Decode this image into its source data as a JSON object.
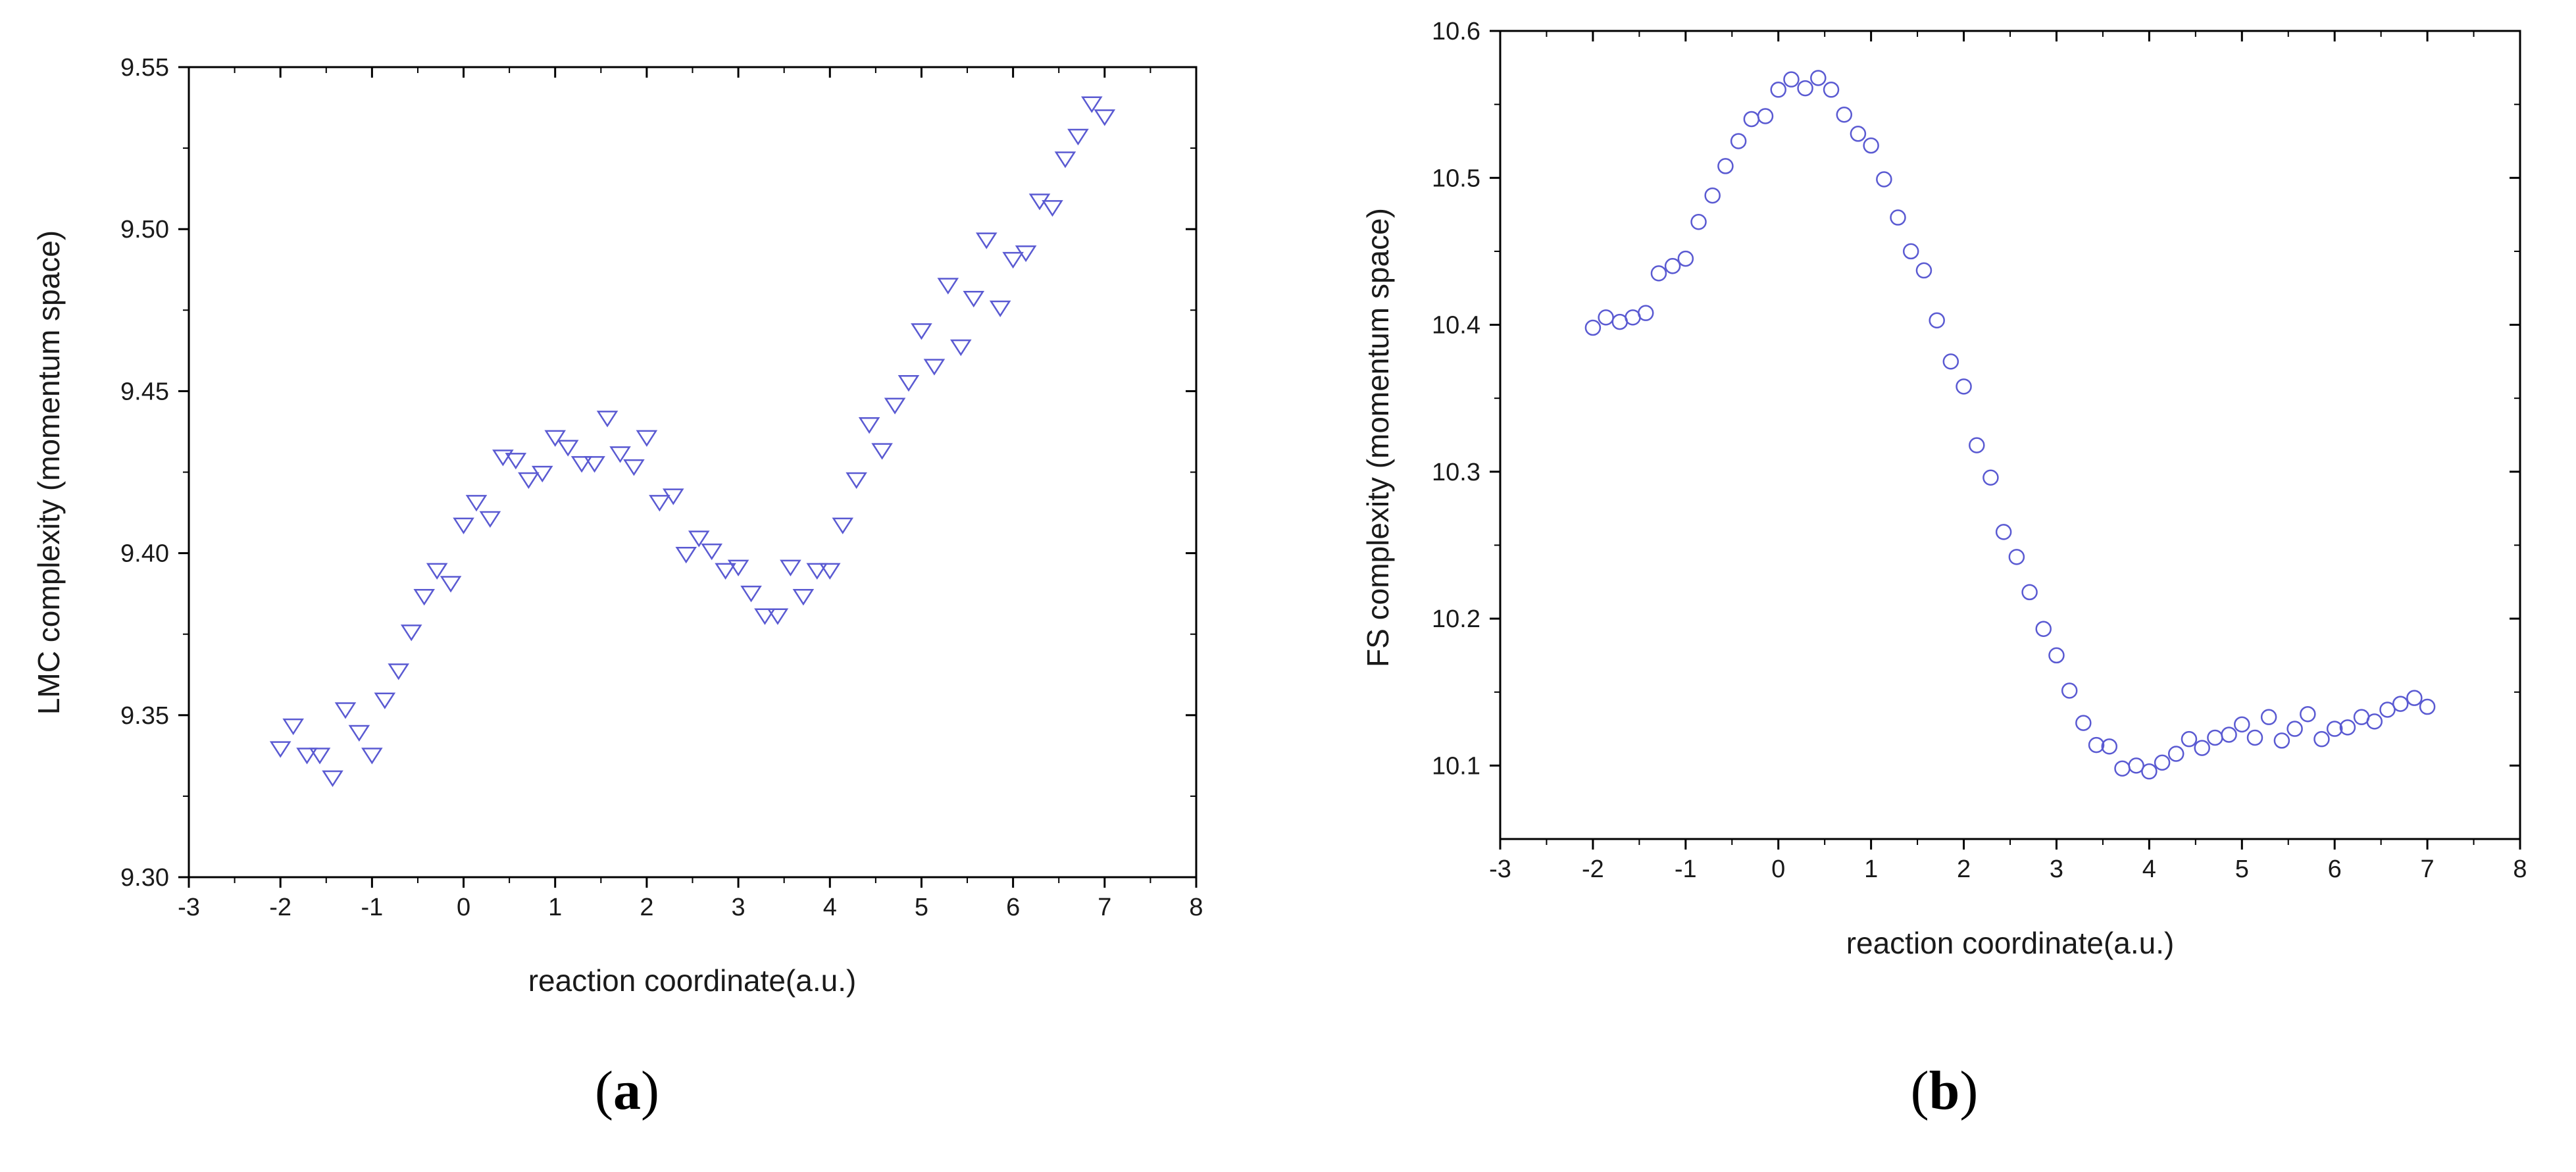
{
  "chart_data": [
    {
      "type": "scatter",
      "panel_label": "a",
      "xlabel": "reaction coordinate(a.u.)",
      "ylabel": "LMC complexity (momentum space)",
      "xlim": [
        -3,
        8
      ],
      "ylim": [
        9.3,
        9.55
      ],
      "xticks": [
        -3,
        -2,
        -1,
        0,
        1,
        2,
        3,
        4,
        5,
        6,
        7,
        8
      ],
      "xtick_labels": [
        "-3",
        "-2",
        "-1",
        "0",
        "1",
        "2",
        "3",
        "4",
        "5",
        "6",
        "7",
        "8"
      ],
      "yticks": [
        9.3,
        9.35,
        9.4,
        9.45,
        9.5,
        9.55
      ],
      "ytick_labels": [
        "9.30",
        "9.35",
        "9.40",
        "9.45",
        "9.50",
        "9.55"
      ],
      "marker": "triangle-down",
      "color": "#5a5ad2",
      "grid": false,
      "series": [
        {
          "x": [
            -2.0,
            -1.86,
            -1.71,
            -1.57,
            -1.43,
            -1.29,
            -1.14,
            -1.0,
            -0.86,
            -0.71,
            -0.57,
            -0.43,
            -0.29,
            -0.14,
            0.0,
            0.14,
            0.29,
            0.43,
            0.57,
            0.71,
            0.86,
            1.0,
            1.14,
            1.29,
            1.43,
            1.57,
            1.71,
            1.86,
            2.0,
            2.14,
            2.29,
            2.43,
            2.57,
            2.71,
            2.86,
            3.0,
            3.14,
            3.29,
            3.43,
            3.57,
            3.71,
            3.86,
            4.0,
            4.14,
            4.29,
            4.43,
            4.57,
            4.71,
            4.86,
            5.0,
            5.14,
            5.29,
            5.43,
            5.57,
            5.71,
            5.86,
            6.0,
            6.14,
            6.29,
            6.43,
            6.57,
            6.71,
            6.86,
            7.0
          ],
          "y": [
            9.34,
            9.347,
            9.338,
            9.338,
            9.331,
            9.352,
            9.345,
            9.338,
            9.355,
            9.364,
            9.376,
            9.387,
            9.395,
            9.391,
            9.409,
            9.416,
            9.411,
            9.43,
            9.429,
            9.423,
            9.425,
            9.436,
            9.433,
            9.428,
            9.428,
            9.442,
            9.431,
            9.427,
            9.436,
            9.416,
            9.418,
            9.4,
            9.405,
            9.401,
            9.395,
            9.396,
            9.388,
            9.381,
            9.381,
            9.396,
            9.387,
            9.395,
            9.395,
            9.409,
            9.423,
            9.44,
            9.432,
            9.446,
            9.453,
            9.469,
            9.458,
            9.483,
            9.464,
            9.479,
            9.497,
            9.476,
            9.491,
            9.493,
            9.509,
            9.507,
            9.522,
            9.529,
            9.539,
            9.535
          ]
        }
      ]
    },
    {
      "type": "scatter",
      "panel_label": "b",
      "xlabel": "reaction coordinate(a.u.)",
      "ylabel": "FS complexity (momentum space)",
      "xlim": [
        -3,
        8
      ],
      "ylim": [
        10.05,
        10.6
      ],
      "xticks": [
        -3,
        -2,
        -1,
        0,
        1,
        2,
        3,
        4,
        5,
        6,
        7,
        8
      ],
      "xtick_labels": [
        "-3",
        "-2",
        "-1",
        "0",
        "1",
        "2",
        "3",
        "4",
        "5",
        "6",
        "7",
        "8"
      ],
      "yticks": [
        10.1,
        10.2,
        10.3,
        10.4,
        10.5,
        10.6
      ],
      "ytick_labels": [
        "10.1",
        "10.2",
        "10.3",
        "10.4",
        "10.5",
        "10.6"
      ],
      "marker": "circle",
      "color": "#5a5ad2",
      "grid": false,
      "series": [
        {
          "x": [
            -2.0,
            -1.86,
            -1.71,
            -1.57,
            -1.43,
            -1.29,
            -1.14,
            -1.0,
            -0.86,
            -0.71,
            -0.57,
            -0.43,
            -0.29,
            -0.14,
            0.0,
            0.14,
            0.29,
            0.43,
            0.57,
            0.71,
            0.86,
            1.0,
            1.14,
            1.29,
            1.43,
            1.57,
            1.71,
            1.86,
            2.0,
            2.14,
            2.29,
            2.43,
            2.57,
            2.71,
            2.86,
            3.0,
            3.14,
            3.29,
            3.43,
            3.57,
            3.71,
            3.86,
            4.0,
            4.14,
            4.29,
            4.43,
            4.57,
            4.71,
            4.86,
            5.0,
            5.14,
            5.29,
            5.43,
            5.57,
            5.71,
            5.86,
            6.0,
            6.14,
            6.29,
            6.43,
            6.57,
            6.71,
            6.86,
            7.0
          ],
          "y": [
            10.398,
            10.405,
            10.402,
            10.405,
            10.408,
            10.435,
            10.44,
            10.445,
            10.47,
            10.488,
            10.508,
            10.525,
            10.54,
            10.542,
            10.56,
            10.567,
            10.561,
            10.568,
            10.56,
            10.543,
            10.53,
            10.522,
            10.499,
            10.473,
            10.45,
            10.437,
            10.403,
            10.375,
            10.358,
            10.318,
            10.296,
            10.259,
            10.242,
            10.218,
            10.193,
            10.175,
            10.151,
            10.129,
            10.114,
            10.113,
            10.098,
            10.1,
            10.096,
            10.102,
            10.108,
            10.118,
            10.112,
            10.119,
            10.121,
            10.128,
            10.119,
            10.133,
            10.117,
            10.125,
            10.135,
            10.118,
            10.125,
            10.126,
            10.133,
            10.13,
            10.138,
            10.142,
            10.146,
            10.14
          ]
        }
      ]
    }
  ]
}
